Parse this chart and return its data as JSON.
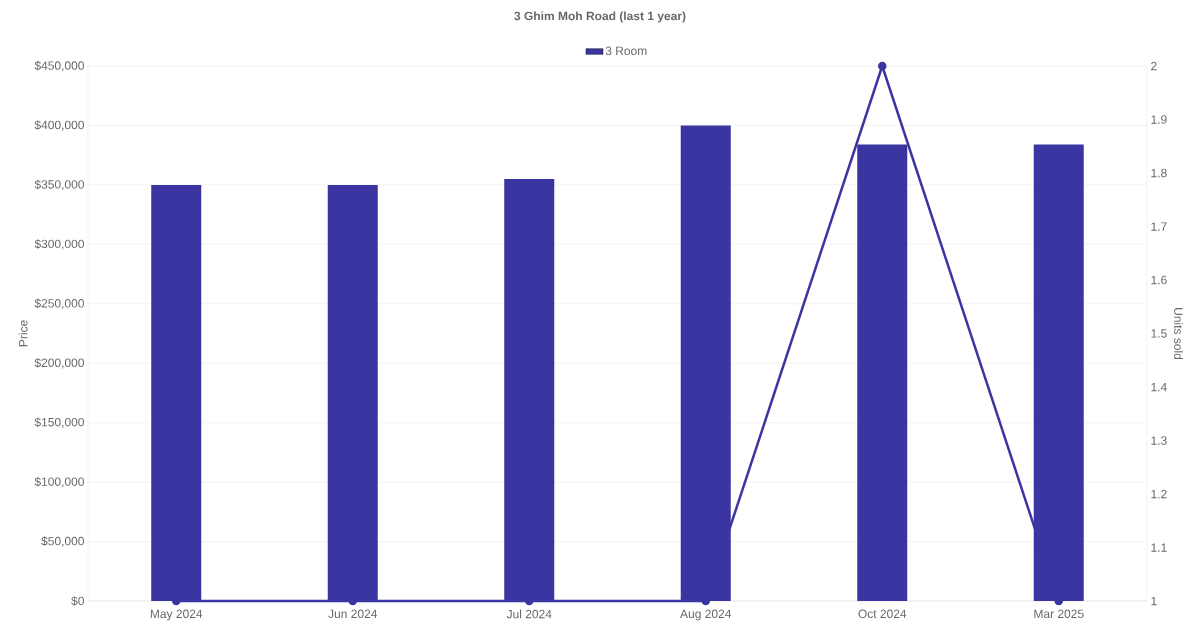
{
  "chart_data": {
    "type": "bar",
    "title": "3 Ghim Moh Road (last 1 year)",
    "categories": [
      "May 2024",
      "Jun 2024",
      "Jul 2024",
      "Aug 2024",
      "Oct 2024",
      "Mar 2025"
    ],
    "series": [
      {
        "name": "3 Room",
        "color": "#3a35a0",
        "values": [
          350000,
          350000,
          355000,
          400000,
          384000,
          384000
        ]
      },
      {
        "type": "line",
        "axis": "y2",
        "color": "#3a35a0",
        "values": [
          1,
          1,
          1,
          1,
          2,
          1
        ]
      }
    ],
    "ylabel": "Price",
    "y2label": "Units sold",
    "ylim": [
      0,
      450000
    ],
    "yticks": [
      {
        "value": 0,
        "label": "$0"
      },
      {
        "value": 50000,
        "label": "$50,000"
      },
      {
        "value": 100000,
        "label": "$100,000"
      },
      {
        "value": 150000,
        "label": "$150,000"
      },
      {
        "value": 200000,
        "label": "$200,000"
      },
      {
        "value": 250000,
        "label": "$250,000"
      },
      {
        "value": 300000,
        "label": "$300,000"
      },
      {
        "value": 350000,
        "label": "$350,000"
      },
      {
        "value": 400000,
        "label": "$400,000"
      },
      {
        "value": 450000,
        "label": "$450,000"
      }
    ],
    "y2lim": [
      1,
      2
    ],
    "y2ticks": [
      1,
      1.1,
      1.2,
      1.3,
      1.4,
      1.5,
      1.6,
      1.7,
      1.8,
      1.9,
      2
    ],
    "grid": "y",
    "legend": "top",
    "marker": "circle",
    "line_style": "solid"
  }
}
